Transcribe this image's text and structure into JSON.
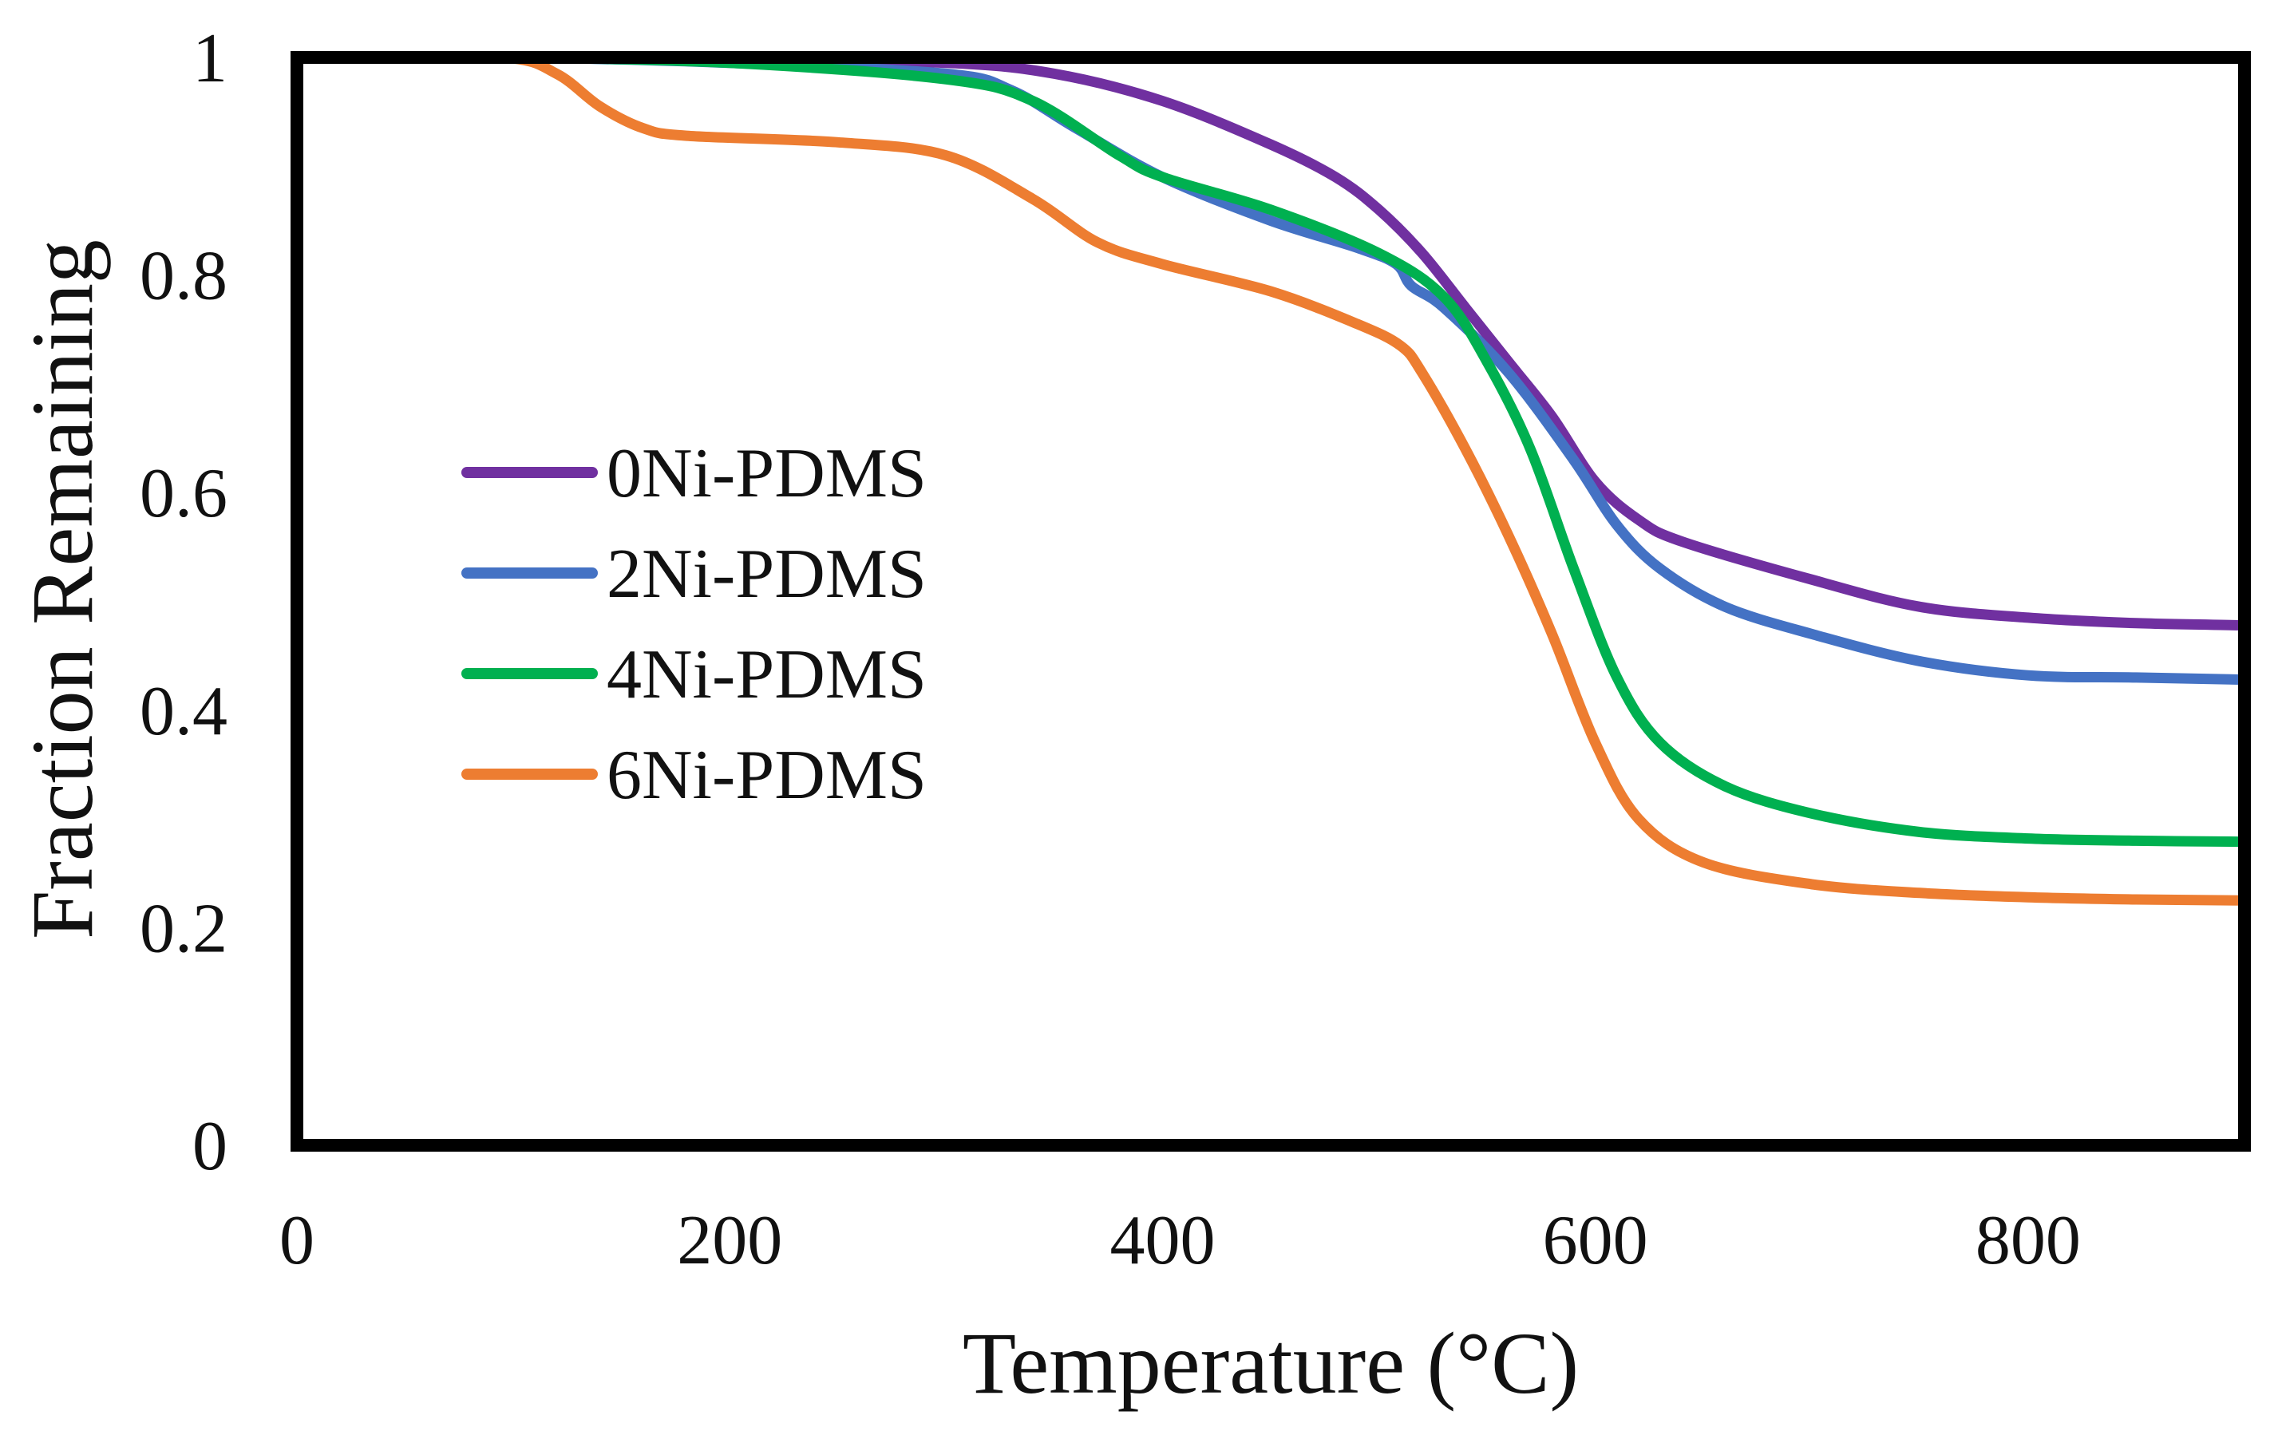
{
  "chart_data": {
    "type": "line",
    "title": "",
    "xlabel": "Temperature (°C)",
    "ylabel": "Fraction Remaining",
    "xlim": [
      0,
      900
    ],
    "ylim": [
      0,
      1
    ],
    "xticks": [
      0,
      200,
      400,
      600,
      800
    ],
    "yticks": [
      0,
      0.2,
      0.4,
      0.6,
      0.8,
      1
    ],
    "ytick_labels": [
      "0",
      "0.2",
      "0.4",
      "0.6",
      "0.8",
      "1"
    ],
    "xtick_labels": [
      "0",
      "200",
      "400",
      "600",
      "800"
    ],
    "grid": false,
    "legend_position": "center-left",
    "series": [
      {
        "name": "0Ni-PDMS",
        "color": "#7030A0",
        "x": [
          20,
          100,
          200,
          300,
          350,
          400,
          450,
          480,
          500,
          520,
          540,
          560,
          580,
          600,
          620,
          640,
          700,
          750,
          800,
          850,
          900
        ],
        "y": [
          1.0,
          1.0,
          0.998,
          0.995,
          0.985,
          0.96,
          0.92,
          0.89,
          0.86,
          0.82,
          0.77,
          0.72,
          0.67,
          0.61,
          0.575,
          0.555,
          0.52,
          0.495,
          0.485,
          0.48,
          0.478
        ]
      },
      {
        "name": "2Ni-PDMS",
        "color": "#4472C4",
        "x": [
          20,
          100,
          200,
          300,
          330,
          360,
          400,
          450,
          490,
          508,
          515,
          530,
          560,
          590,
          610,
          630,
          660,
          700,
          750,
          800,
          850,
          900
        ],
        "y": [
          1.0,
          1.0,
          0.995,
          0.985,
          0.97,
          0.935,
          0.89,
          0.85,
          0.825,
          0.81,
          0.79,
          0.77,
          0.71,
          0.63,
          0.57,
          0.53,
          0.495,
          0.47,
          0.445,
          0.432,
          0.43,
          0.428
        ]
      },
      {
        "name": "4Ni-PDMS",
        "color": "#00B050",
        "x": [
          20,
          100,
          200,
          300,
          340,
          380,
          400,
          450,
          500,
          530,
          550,
          570,
          590,
          610,
          630,
          660,
          700,
          750,
          800,
          850,
          900
        ],
        "y": [
          1.0,
          1.0,
          0.995,
          0.98,
          0.96,
          0.91,
          0.89,
          0.86,
          0.82,
          0.78,
          0.72,
          0.64,
          0.53,
          0.43,
          0.37,
          0.33,
          0.305,
          0.288,
          0.282,
          0.28,
          0.279
        ]
      },
      {
        "name": "6Ni-PDMS",
        "color": "#ED7D31",
        "x": [
          20,
          95,
          120,
          140,
          160,
          180,
          250,
          300,
          340,
          370,
          400,
          450,
          490,
          510,
          520,
          540,
          560,
          580,
          600,
          620,
          650,
          700,
          750,
          800,
          850,
          900
        ],
        "y": [
          1.0,
          1.0,
          0.985,
          0.955,
          0.935,
          0.928,
          0.922,
          0.91,
          0.87,
          0.83,
          0.81,
          0.785,
          0.755,
          0.735,
          0.71,
          0.64,
          0.56,
          0.47,
          0.37,
          0.3,
          0.26,
          0.24,
          0.232,
          0.228,
          0.226,
          0.225
        ]
      }
    ]
  }
}
